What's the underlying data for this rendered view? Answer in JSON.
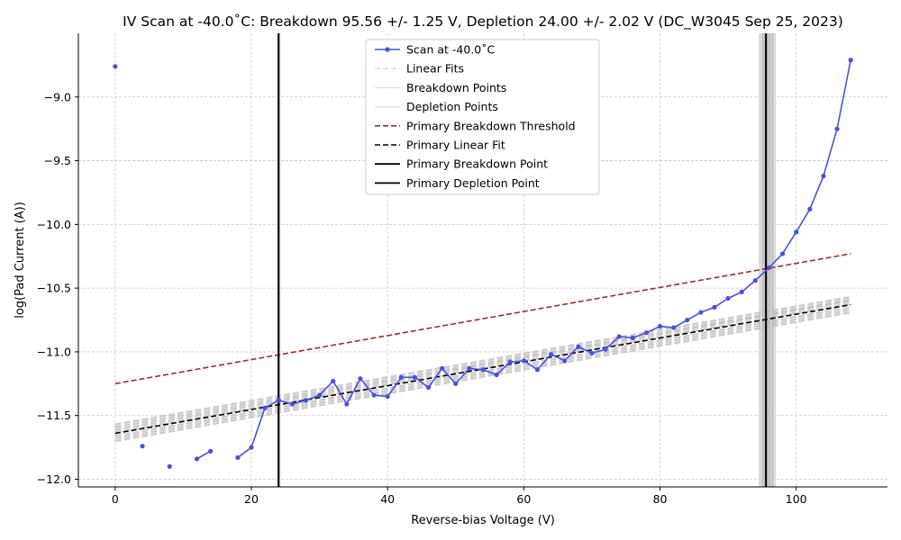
{
  "chart_data": {
    "type": "line",
    "title": "IV Scan at -40.0˚C: Breakdown 95.56 +/- 1.25 V, Depletion 24.00 +/- 2.02 V (DC_W3045 Sep 25, 2023)",
    "xlabel": "Reverse-bias Voltage (V)",
    "ylabel": "log(Pad Current (A))",
    "xlim": [
      -5.4,
      113.4
    ],
    "ylim": [
      -12.06,
      -8.5
    ],
    "x_ticks": [
      0,
      20,
      40,
      60,
      80,
      100
    ],
    "y_ticks": [
      -12.0,
      -11.5,
      -11.0,
      -10.5,
      -10.0,
      -9.5,
      -9.0
    ],
    "x_tick_labels": [
      "0",
      "20",
      "40",
      "60",
      "80",
      "100"
    ],
    "y_tick_labels": [
      "−12.0",
      "−11.5",
      "−11.0",
      "−10.5",
      "−10.0",
      "−9.5",
      "−9.0"
    ],
    "grid": true,
    "legend_position": "upper center",
    "colors": {
      "scan": "#4652e0",
      "threshold": "#a52a2a",
      "primary": "#000000",
      "fits": "#bbbbbb"
    },
    "series": [
      {
        "name": "Scan at -40.0˚C",
        "kind": "scan",
        "segments": [
          [
            [
              0,
              -8.76
            ]
          ],
          [
            [
              4,
              -11.74
            ]
          ],
          [
            [
              8,
              -11.9
            ]
          ],
          [
            [
              12,
              -11.84
            ],
            [
              14,
              -11.78
            ]
          ],
          [
            [
              18,
              -11.83
            ],
            [
              20,
              -11.75
            ],
            [
              22,
              -11.44
            ],
            [
              24,
              -11.38
            ],
            [
              26,
              -11.41
            ],
            [
              28,
              -11.38
            ],
            [
              30,
              -11.34
            ],
            [
              32,
              -11.23
            ],
            [
              34,
              -11.41
            ],
            [
              36,
              -11.21
            ],
            [
              38,
              -11.34
            ],
            [
              40,
              -11.35
            ],
            [
              42,
              -11.2
            ],
            [
              44,
              -11.2
            ],
            [
              46,
              -11.28
            ],
            [
              48,
              -11.13
            ],
            [
              50,
              -11.25
            ],
            [
              52,
              -11.13
            ],
            [
              54,
              -11.14
            ],
            [
              56,
              -11.18
            ],
            [
              58,
              -11.08
            ],
            [
              60,
              -11.07
            ],
            [
              62,
              -11.14
            ],
            [
              64,
              -11.02
            ],
            [
              66,
              -11.07
            ],
            [
              68,
              -10.96
            ],
            [
              70,
              -11.01
            ],
            [
              72,
              -10.98
            ],
            [
              74,
              -10.88
            ],
            [
              76,
              -10.89
            ],
            [
              78,
              -10.85
            ],
            [
              80,
              -10.8
            ],
            [
              82,
              -10.81
            ],
            [
              84,
              -10.75
            ],
            [
              86,
              -10.69
            ],
            [
              88,
              -10.65
            ],
            [
              90,
              -10.58
            ],
            [
              92,
              -10.53
            ],
            [
              94,
              -10.44
            ],
            [
              96,
              -10.34
            ],
            [
              98,
              -10.23
            ],
            [
              100,
              -10.06
            ],
            [
              102,
              -9.88
            ],
            [
              104,
              -9.62
            ],
            [
              106,
              -9.25
            ],
            [
              108,
              -8.71
            ]
          ]
        ]
      },
      {
        "name": "Linear Fits",
        "kind": "fits"
      },
      {
        "name": "Breakdown Points",
        "kind": "bd-points"
      },
      {
        "name": "Depletion Points",
        "kind": "dep-points"
      },
      {
        "name": "Primary Breakdown Threshold",
        "kind": "threshold",
        "points": [
          [
            0,
            -11.25
          ],
          [
            108,
            -10.23
          ]
        ]
      },
      {
        "name": "Primary Linear Fit",
        "kind": "primary-fit",
        "points": [
          [
            0,
            -11.64
          ],
          [
            108,
            -10.63
          ]
        ]
      },
      {
        "name": "Primary Breakdown Point",
        "kind": "primary-bd",
        "x": 95.56
      },
      {
        "name": "Primary Depletion Point",
        "kind": "primary-dep",
        "x": 24.0
      }
    ],
    "linear_fits": [
      [
        [
          0,
          -11.57
        ],
        [
          108,
          -10.57
        ]
      ],
      [
        [
          0,
          -11.59
        ],
        [
          108,
          -10.59
        ]
      ],
      [
        [
          0,
          -11.61
        ],
        [
          108,
          -10.6
        ]
      ],
      [
        [
          0,
          -11.63
        ],
        [
          108,
          -10.62
        ]
      ],
      [
        [
          0,
          -11.66
        ],
        [
          108,
          -10.65
        ]
      ],
      [
        [
          0,
          -11.68
        ],
        [
          108,
          -10.67
        ]
      ],
      [
        [
          0,
          -11.7
        ],
        [
          108,
          -10.69
        ]
      ]
    ],
    "breakdown_points": [
      95.1,
      95.4,
      95.8,
      96.1,
      96.5
    ],
    "depletion_points": [
      23.8,
      24.0,
      24.2
    ],
    "breakdown_band": [
      94.5,
      97.0
    ]
  }
}
